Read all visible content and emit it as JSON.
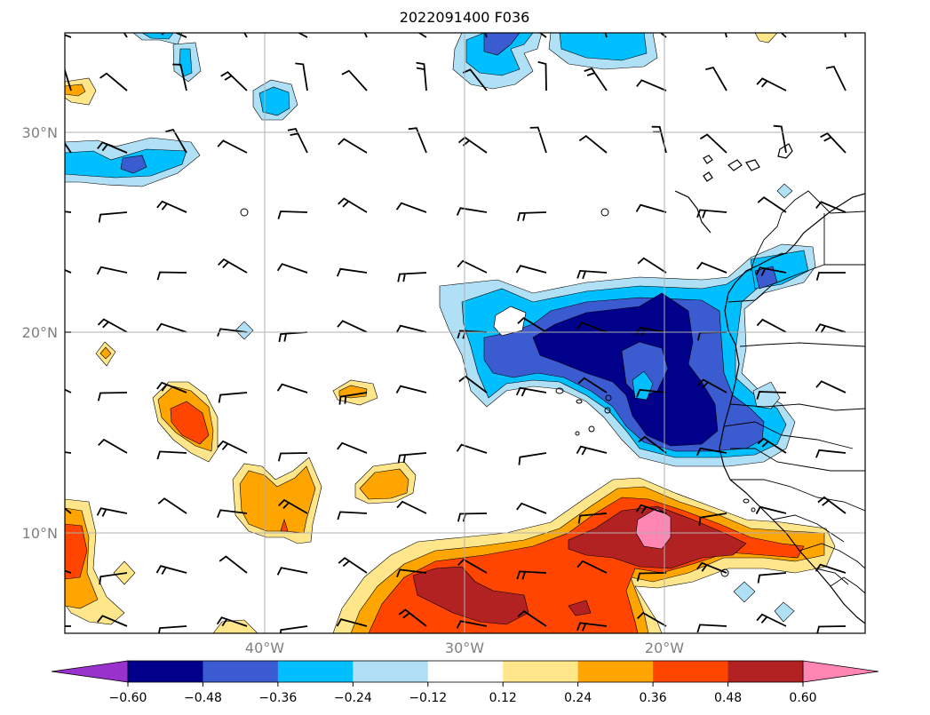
{
  "title": "2022091400 F036",
  "map": {
    "lat_range": [
      5,
      35
    ],
    "lon_range": [
      -50,
      -10
    ],
    "lat_labels": [
      {
        "value": 30,
        "label": "30°N"
      },
      {
        "value": 20,
        "label": "20°N"
      },
      {
        "value": 10,
        "label": "10°N"
      }
    ],
    "lon_labels": [
      {
        "value": -40,
        "label": "40°W"
      },
      {
        "value": -30,
        "label": "30°W"
      },
      {
        "value": -20,
        "label": "20°W"
      }
    ],
    "gridlines": true,
    "gridline_color": "#b0b0b0"
  },
  "colorbar": {
    "levels": [
      "−0.60",
      "−0.48",
      "−0.36",
      "−0.24",
      "−0.12",
      "0.12",
      "0.24",
      "0.36",
      "0.48",
      "0.60"
    ],
    "colors": [
      "#9932cc",
      "#00008b",
      "#3b5bd1",
      "#00bfff",
      "#b0e0f6",
      "#ffffff",
      "#ffe68a",
      "#ffa500",
      "#ff4500",
      "#b22222",
      "#ff85b3"
    ],
    "extend": "both"
  },
  "fill_colors": {
    "neg060": "#00008b",
    "neg048": "#3b5bd1",
    "neg036": "#00bfff",
    "neg024": "#b0e0f6",
    "pos024": "#ffe68a",
    "pos036": "#ffa500",
    "pos048": "#ff4500",
    "pos060": "#b22222",
    "pos072": "#ff85b3"
  }
}
